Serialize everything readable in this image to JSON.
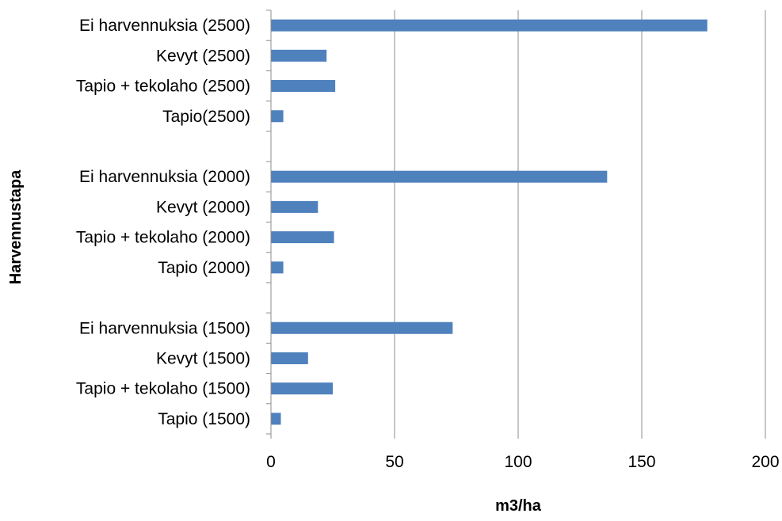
{
  "chart_data": {
    "type": "bar",
    "orientation": "horizontal",
    "title": "",
    "xlabel": "m3/ha",
    "ylabel": "Harvennustapa",
    "xlim": [
      0,
      200
    ],
    "x_ticks": [
      0,
      50,
      100,
      150,
      200
    ],
    "x_tick_labels": [
      "0",
      "50",
      "100",
      "150",
      "200"
    ],
    "grid": "vertical",
    "legend": "none",
    "bar_color": "#4f81bd",
    "categories": [
      "Ei harvennuksia (2500)",
      "Kevyt (2500)",
      "Tapio + tekolaho (2500)",
      "Tapio(2500)",
      "",
      "Ei harvennuksia (2000)",
      "Kevyt (2000)",
      "Tapio + tekolaho (2000)",
      "Tapio (2000)",
      "",
      "Ei harvennuksia (1500)",
      "Kevyt (1500)",
      "Tapio + tekolaho (1500)",
      "Tapio (1500)"
    ],
    "values": [
      176.5,
      22.5,
      26,
      5,
      null,
      136,
      19,
      25.5,
      5,
      null,
      73.5,
      15,
      25,
      4
    ]
  }
}
